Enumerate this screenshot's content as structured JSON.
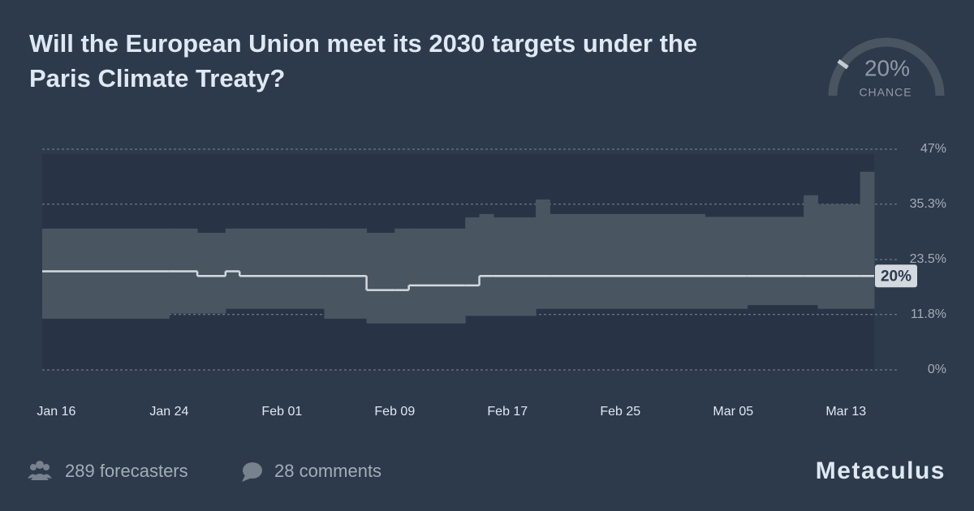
{
  "title": "Will the European Union meet its 2030 targets under the Paris Climate Treaty?",
  "gauge": {
    "value": 20,
    "label": "20%",
    "caption": "CHANCE"
  },
  "footer": {
    "forecasters": "289 forecasters",
    "comments": "28 comments",
    "brand": "Metaculus"
  },
  "chart_data": {
    "type": "line",
    "step": true,
    "x": [
      "Jan 15",
      "Jan 24",
      "Jan 26",
      "Jan 28",
      "Jan 29",
      "Feb 04",
      "Feb 07",
      "Feb 09",
      "Feb 10",
      "Feb 14",
      "Feb 15",
      "Feb 16",
      "Feb 19",
      "Feb 20",
      "Mar 03",
      "Mar 06",
      "Mar 10",
      "Mar 11",
      "Mar 14"
    ],
    "values": [
      21,
      21,
      20,
      21,
      20,
      20,
      17,
      17,
      18,
      18,
      20,
      20,
      20,
      20,
      20,
      20,
      20,
      20,
      20
    ],
    "lower": [
      10.9,
      12,
      12,
      13,
      13,
      10.9,
      9.9,
      9.9,
      9.9,
      11.5,
      11.5,
      11.5,
      13,
      13,
      13,
      13.8,
      13.8,
      13,
      13
    ],
    "upper": [
      30.1,
      30.1,
      29.2,
      30.1,
      30.1,
      30.1,
      29.2,
      30.1,
      30.1,
      32.5,
      33.2,
      32.5,
      36.3,
      33.2,
      32.6,
      32.6,
      37.2,
      35.3,
      42.2
    ],
    "end_label": "20%",
    "line_color": "#d3d9df",
    "band_color": "#4a5562",
    "xlim": [
      "Jan 15",
      "Mar 15"
    ],
    "xticks": [
      "Jan 16",
      "Jan 24",
      "Feb 01",
      "Feb 09",
      "Feb 17",
      "Feb 25",
      "Mar 05",
      "Mar 13"
    ],
    "ylim": [
      0,
      47
    ],
    "yticks": [
      {
        "value": 0,
        "label": "0%"
      },
      {
        "value": 11.8,
        "label": "11.8%"
      },
      {
        "value": 23.5,
        "label": "23.5%"
      },
      {
        "value": 35.3,
        "label": "35.3%"
      },
      {
        "value": 47,
        "label": "47%"
      }
    ],
    "grid": true
  }
}
